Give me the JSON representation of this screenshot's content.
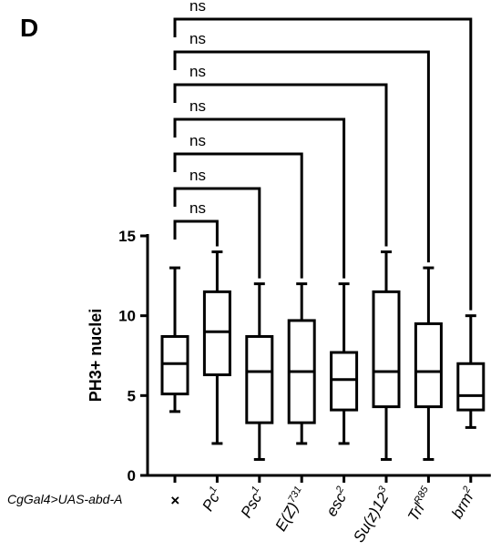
{
  "panel_letter": "D",
  "genotype_label": "CgGal4>UAS-abd-A",
  "chart_data": {
    "type": "boxplot",
    "ylabel": "PH3+ nuclei",
    "ylim": [
      0,
      15
    ],
    "yticks": [
      "0",
      "5",
      "10",
      "15"
    ],
    "categories": [
      {
        "base": "×",
        "sup": ""
      },
      {
        "base": "Pc",
        "sup": "1"
      },
      {
        "base": "Psc",
        "sup": "1"
      },
      {
        "base": "E(Z)",
        "sup": "731"
      },
      {
        "base": "esc",
        "sup": "2"
      },
      {
        "base": "Su(z)12",
        "sup": "3"
      },
      {
        "base": "Trl",
        "sup": "R85"
      },
      {
        "base": "brm",
        "sup": "2"
      }
    ],
    "boxes": [
      {
        "min": 4,
        "q1": 5.1,
        "median": 7,
        "q3": 8.7,
        "max": 13
      },
      {
        "min": 2,
        "q1": 6.3,
        "median": 9,
        "q3": 11.5,
        "max": 14
      },
      {
        "min": 1,
        "q1": 3.3,
        "median": 6.5,
        "q3": 8.7,
        "max": 12
      },
      {
        "min": 2,
        "q1": 3.3,
        "median": 6.5,
        "q3": 9.7,
        "max": 12
      },
      {
        "min": 2,
        "q1": 4.1,
        "median": 6,
        "q3": 7.7,
        "max": 12
      },
      {
        "min": 1,
        "q1": 4.3,
        "median": 6.5,
        "q3": 11.5,
        "max": 14
      },
      {
        "min": 1,
        "q1": 4.3,
        "median": 6.5,
        "q3": 9.5,
        "max": 13
      },
      {
        "min": 3,
        "q1": 4.1,
        "median": 5,
        "q3": 7,
        "max": 10
      }
    ],
    "comparisons": [
      {
        "group1": 0,
        "group2": 1,
        "label": "ns"
      },
      {
        "group1": 0,
        "group2": 2,
        "label": "ns"
      },
      {
        "group1": 0,
        "group2": 3,
        "label": "ns"
      },
      {
        "group1": 0,
        "group2": 4,
        "label": "ns"
      },
      {
        "group1": 0,
        "group2": 5,
        "label": "ns"
      },
      {
        "group1": 0,
        "group2": 6,
        "label": "ns"
      },
      {
        "group1": 0,
        "group2": 7,
        "label": "ns"
      }
    ]
  }
}
